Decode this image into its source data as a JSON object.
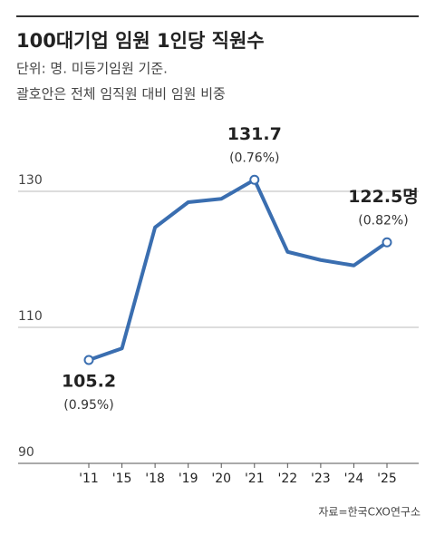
{
  "chart_data": {
    "type": "line",
    "title": "100대기업 임원 1인당 직원수",
    "subtitle": [
      "단위: 명. 미등기임원 기준.",
      "괄호안은 전체 임직원 대비 임원 비중"
    ],
    "source": "자료=한국CXO연구소",
    "categories": [
      "'11",
      "'15",
      "'18",
      "'19",
      "'20",
      "'21",
      "'22",
      "'23",
      "'24",
      "'25"
    ],
    "series": [
      {
        "name": "임원 1인당 직원수",
        "color": "#3a6eb0",
        "values": [
          105.2,
          106.9,
          124.7,
          128.4,
          128.9,
          131.7,
          121.1,
          119.9,
          119.1,
          122.5
        ],
        "value_labels": [
          "105.2",
          null,
          null,
          null,
          null,
          "131.7",
          null,
          null,
          null,
          "122.5명"
        ],
        "share_labels": [
          "(0.95%)",
          null,
          null,
          null,
          null,
          "(0.76%)",
          null,
          null,
          null,
          "(0.82%)"
        ]
      }
    ],
    "ylim": [
      90,
      140
    ],
    "yticks": [
      90,
      110,
      130
    ],
    "grid": true
  }
}
